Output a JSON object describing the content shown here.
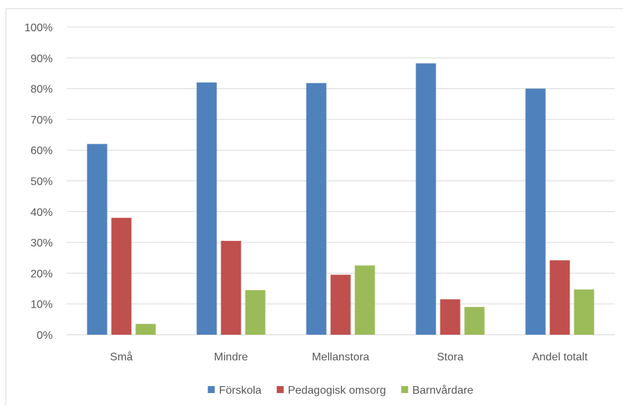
{
  "chart_data": {
    "type": "bar",
    "categories": [
      "Små",
      "Mindre",
      "Mellanstora",
      "Stora",
      "Andel totalt"
    ],
    "series": [
      {
        "name": "Förskola",
        "color": "#4f81bd",
        "values": [
          62,
          82,
          81.8,
          88.2,
          80
        ]
      },
      {
        "name": "Pedagogisk omsorg",
        "color": "#c0504d",
        "values": [
          38,
          30.5,
          19.5,
          11.5,
          24.2
        ]
      },
      {
        "name": "Barnvårdare",
        "color": "#9bbb59",
        "values": [
          3.5,
          14.5,
          22.5,
          9,
          14.7
        ]
      }
    ],
    "ylim": [
      0,
      100
    ],
    "y_ticks": [
      0,
      10,
      20,
      30,
      40,
      50,
      60,
      70,
      80,
      90,
      100
    ],
    "y_tick_labels": [
      "0%",
      "10%",
      "20%",
      "30%",
      "40%",
      "50%",
      "60%",
      "70%",
      "80%",
      "90%",
      "100%"
    ],
    "grid": true,
    "legend_position": "bottom"
  }
}
